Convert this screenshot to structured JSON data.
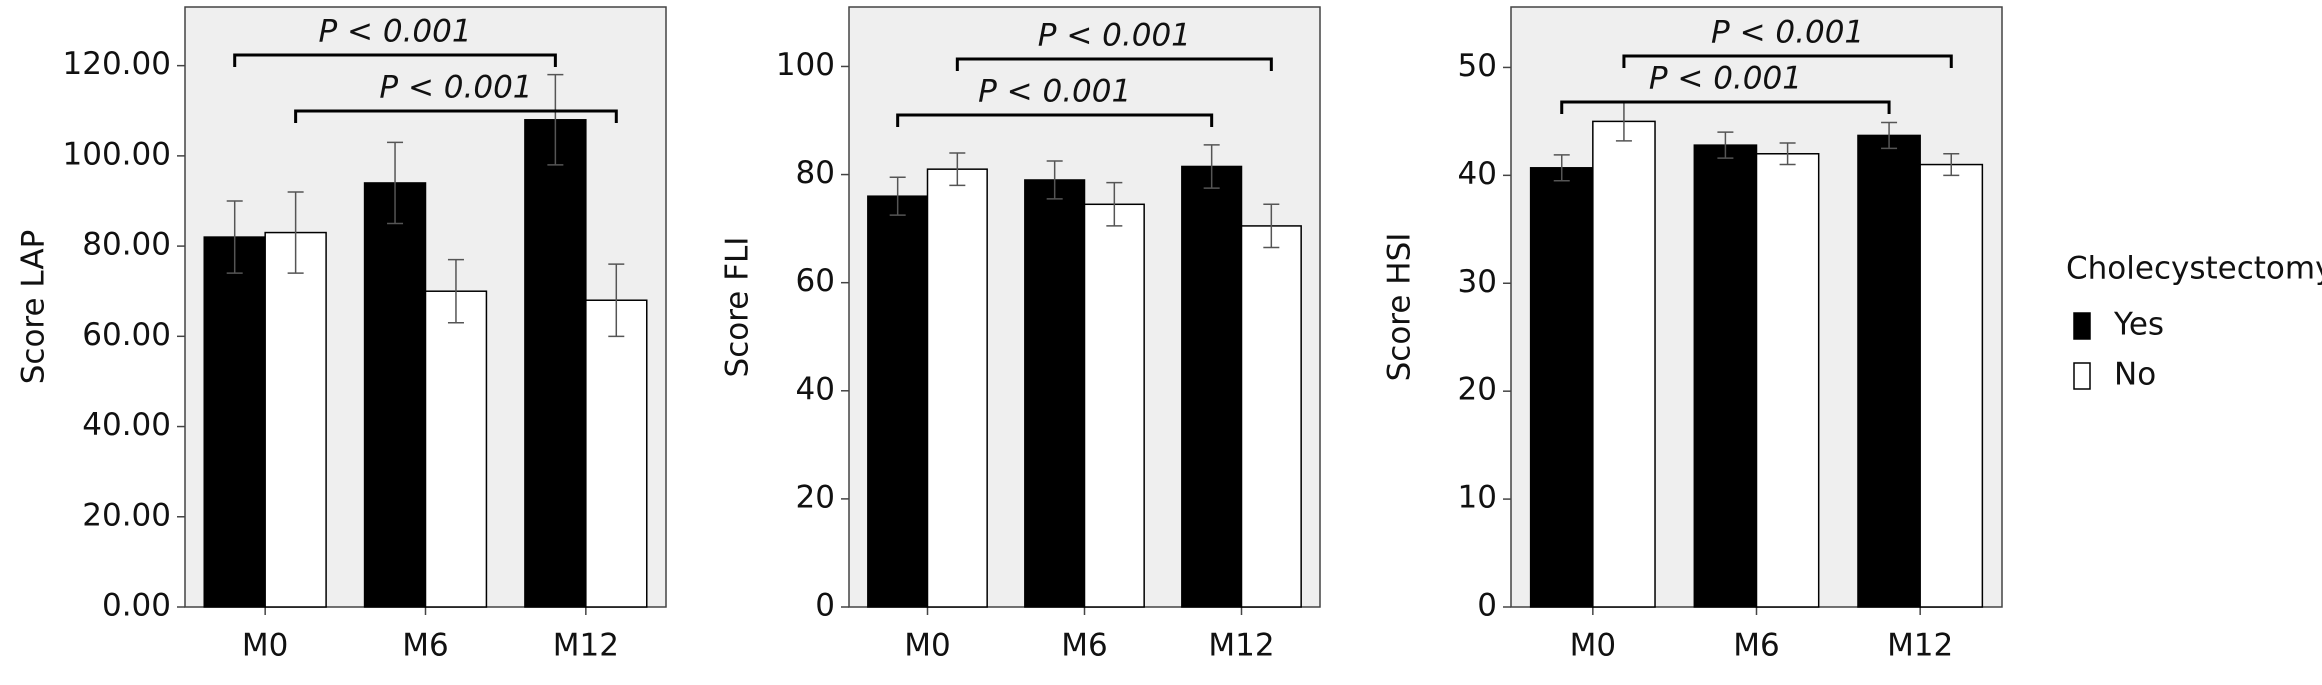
{
  "chart_data": [
    {
      "type": "bar",
      "y_label": "Score LAP",
      "categories": [
        "M0",
        "M6",
        "M12"
      ],
      "series": [
        {
          "name": "Yes",
          "color": "#000000",
          "values": [
            82,
            94,
            108
          ],
          "errors": [
            8,
            9,
            10
          ]
        },
        {
          "name": "No",
          "color": "#ffffff",
          "values": [
            83,
            70,
            68
          ],
          "errors": [
            9,
            7,
            8
          ]
        }
      ],
      "ylim": [
        0,
        133
      ],
      "yticks": [
        {
          "value": 0,
          "label": "0.00"
        },
        {
          "value": 20,
          "label": "20.00"
        },
        {
          "value": 40,
          "label": "40.00"
        },
        {
          "value": 60,
          "label": "60.00"
        },
        {
          "value": 80,
          "label": "80.00"
        },
        {
          "value": 100,
          "label": "100.00"
        },
        {
          "value": 120,
          "label": "120.00"
        }
      ],
      "annotations": [
        {
          "text": "P < 0.001",
          "series": "Yes",
          "from": "M0",
          "to": "M12"
        },
        {
          "text": "P < 0.001",
          "series": "No",
          "from": "M0",
          "to": "M12"
        }
      ]
    },
    {
      "type": "bar",
      "y_label": "Score FLI",
      "categories": [
        "M0",
        "M6",
        "M12"
      ],
      "series": [
        {
          "name": "Yes",
          "color": "#000000",
          "values": [
            76,
            79,
            81.5
          ],
          "errors": [
            3.5,
            3.5,
            4
          ]
        },
        {
          "name": "No",
          "color": "#ffffff",
          "values": [
            81,
            74.5,
            70.5
          ],
          "errors": [
            3,
            4,
            4
          ]
        }
      ],
      "ylim": [
        0,
        111
      ],
      "yticks": [
        0,
        20,
        40,
        60,
        80,
        100
      ],
      "annotations": [
        {
          "text": "P < 0.001",
          "series": "No",
          "from": "M0",
          "to": "M12"
        },
        {
          "text": "P < 0.001",
          "series": "Yes",
          "from": "M0",
          "to": "M12"
        }
      ]
    },
    {
      "type": "bar",
      "y_label": "Score HSI",
      "categories": [
        "M0",
        "M6",
        "M12"
      ],
      "series": [
        {
          "name": "Yes",
          "color": "#000000",
          "values": [
            40.7,
            42.8,
            43.7
          ],
          "errors": [
            1.2,
            1.2,
            1.2
          ]
        },
        {
          "name": "No",
          "color": "#ffffff",
          "values": [
            45,
            42,
            41
          ],
          "errors": [
            1.8,
            1,
            1
          ]
        }
      ],
      "ylim": [
        0,
        55.6
      ],
      "yticks": [
        0,
        10,
        20,
        30,
        40,
        50
      ],
      "annotations": [
        {
          "text": "P < 0.001",
          "series": "No",
          "from": "M0",
          "to": "M12"
        },
        {
          "text": "P < 0.001",
          "series": "Yes",
          "from": "M0",
          "to": "M12"
        }
      ],
      "legend_title": "Cholecystectomy"
    }
  ]
}
